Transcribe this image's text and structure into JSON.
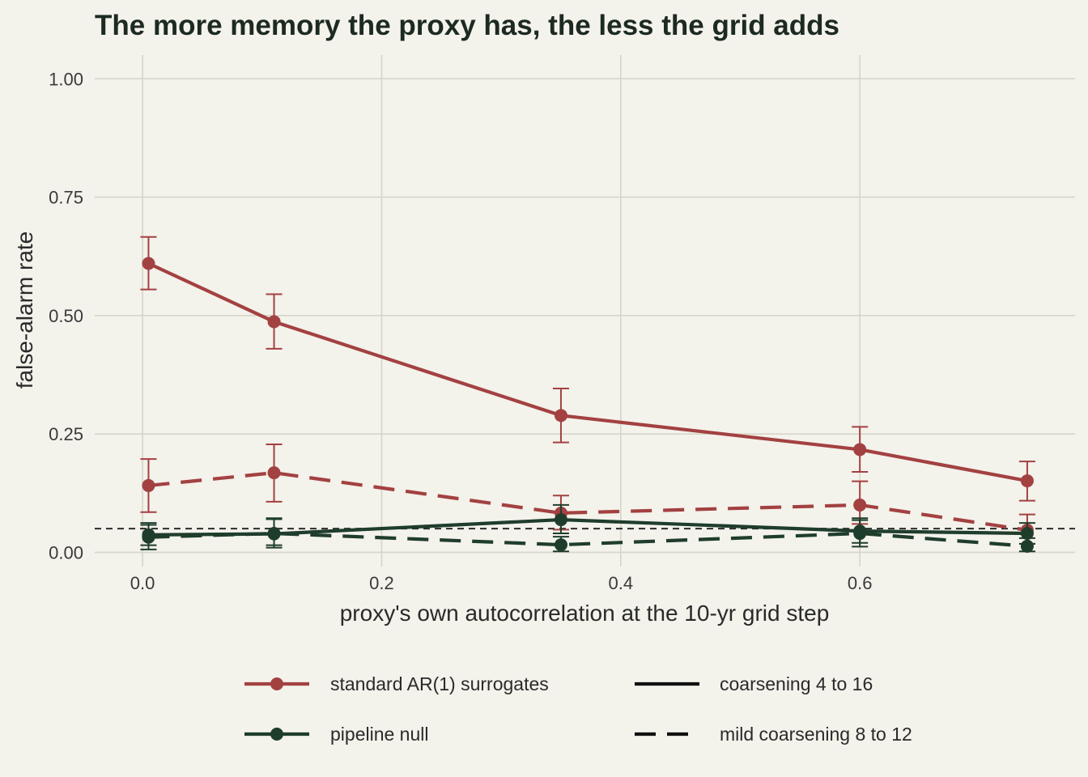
{
  "chart_data": {
    "type": "line",
    "title": "The more memory the proxy has, the less the grid adds",
    "xlabel": "proxy's own autocorrelation at the 10-yr grid step",
    "ylabel": "false-alarm rate",
    "xlim": [
      -0.04,
      0.78
    ],
    "ylim": [
      -0.03,
      1.05
    ],
    "x_ticks": [
      0.0,
      0.2,
      0.4,
      0.6
    ],
    "x_tick_labels": [
      "0.0",
      "0.2",
      "0.4",
      "0.6"
    ],
    "y_ticks": [
      0.0,
      0.25,
      0.5,
      0.75,
      1.0
    ],
    "y_tick_labels": [
      "0.00",
      "0.25",
      "0.50",
      "0.75",
      "1.00"
    ],
    "reference_line": {
      "y": 0.05,
      "style": "dashed"
    },
    "grid": true,
    "legend_position": "bottom",
    "legend": {
      "method": [
        {
          "label": "standard AR(1) surrogates",
          "color": "#a34141"
        },
        {
          "label": "pipeline null",
          "color": "#1f3d2b"
        }
      ],
      "coarsening": [
        {
          "label": "coarsening 4 to 16",
          "dash": "solid"
        },
        {
          "label": "mild coarsening 8 to 12",
          "dash": "dashed"
        }
      ]
    },
    "series": [
      {
        "method": "standard AR(1) surrogates",
        "coarsening": "coarsening 4 to 16",
        "color": "#a34141",
        "dash": "solid",
        "x": [
          0.005,
          0.11,
          0.35,
          0.6,
          0.74
        ],
        "y": [
          0.61,
          0.487,
          0.289,
          0.217,
          0.151
        ],
        "err_low": [
          0.555,
          0.43,
          0.232,
          0.17,
          0.109
        ],
        "err_high": [
          0.666,
          0.545,
          0.346,
          0.265,
          0.192
        ]
      },
      {
        "method": "standard AR(1) surrogates",
        "coarsening": "mild coarsening 8 to 12",
        "color": "#a34141",
        "dash": "dashed",
        "x": [
          0.005,
          0.11,
          0.35,
          0.6,
          0.74
        ],
        "y": [
          0.141,
          0.168,
          0.083,
          0.1,
          0.047
        ],
        "err_low": [
          0.085,
          0.107,
          0.048,
          0.06,
          0.018
        ],
        "err_high": [
          0.197,
          0.228,
          0.12,
          0.15,
          0.08
        ]
      },
      {
        "method": "pipeline null",
        "coarsening": "coarsening 4 to 16",
        "color": "#1f3d2b",
        "dash": "solid",
        "x": [
          0.005,
          0.11,
          0.35,
          0.6,
          0.74
        ],
        "y": [
          0.037,
          0.039,
          0.069,
          0.045,
          0.04
        ],
        "err_low": [
          0.015,
          0.015,
          0.04,
          0.02,
          0.018
        ],
        "err_high": [
          0.062,
          0.072,
          0.1,
          0.072,
          0.062
        ]
      },
      {
        "method": "pipeline null",
        "coarsening": "mild coarsening 8 to 12",
        "color": "#1f3d2b",
        "dash": "dashed",
        "x": [
          0.005,
          0.11,
          0.35,
          0.6,
          0.74
        ],
        "y": [
          0.032,
          0.04,
          0.016,
          0.04,
          0.013
        ],
        "err_low": [
          0.006,
          0.01,
          0.002,
          0.012,
          0.002
        ],
        "err_high": [
          0.058,
          0.07,
          0.033,
          0.068,
          0.03
        ]
      }
    ]
  }
}
